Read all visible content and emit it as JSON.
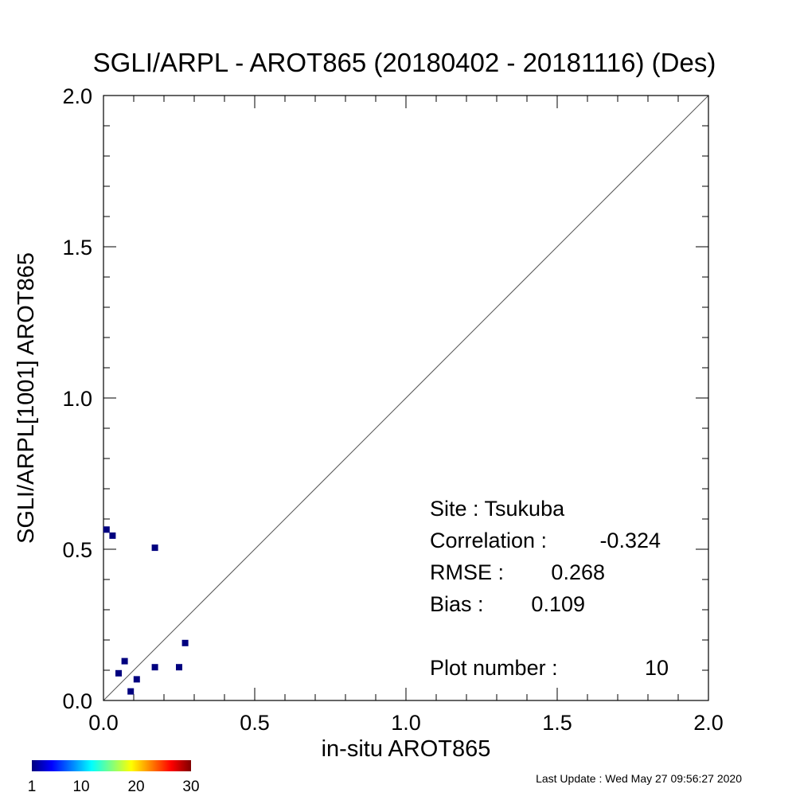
{
  "chart_data": {
    "type": "scatter",
    "title": "SGLI/ARPL - AROT865 (20180402 - 20181116) (Des)",
    "xlabel": "in-situ AROT865",
    "ylabel": "SGLI/ARPL[1001]    AROT865",
    "xlim": [
      0,
      2
    ],
    "ylim": [
      0,
      2
    ],
    "x_ticks": [
      "0.0",
      "0.5",
      "1.0",
      "1.5",
      "2.0"
    ],
    "y_ticks": [
      "0.0",
      "0.5",
      "1.0",
      "1.5",
      "2.0"
    ],
    "reference_line": "1:1",
    "grid": false,
    "points": [
      {
        "x": 0.01,
        "y": 0.565
      },
      {
        "x": 0.03,
        "y": 0.545
      },
      {
        "x": 0.17,
        "y": 0.505
      },
      {
        "x": 0.05,
        "y": 0.09
      },
      {
        "x": 0.07,
        "y": 0.13
      },
      {
        "x": 0.09,
        "y": 0.03
      },
      {
        "x": 0.11,
        "y": 0.07
      },
      {
        "x": 0.17,
        "y": 0.11
      },
      {
        "x": 0.25,
        "y": 0.11
      },
      {
        "x": 0.27,
        "y": 0.19
      }
    ],
    "point_color": "#00007f",
    "stats": [
      {
        "label": "Site : Tsukuba",
        "value": ""
      },
      {
        "label": "Correlation :",
        "value": "-0.324"
      },
      {
        "label": "RMSE :",
        "value": "0.268"
      },
      {
        "label": "Bias :",
        "value": "0.109"
      },
      {
        "label": "Plot number :",
        "value": "10"
      }
    ],
    "colorbar": {
      "ticks": [
        "1",
        "10",
        "20",
        "30"
      ],
      "tick_values": [
        1,
        10,
        20,
        30
      ],
      "range": [
        1,
        30
      ],
      "colormap": "jet"
    }
  },
  "footer": {
    "last_update": "Last Update : Wed May 27 09:56:27 2020"
  }
}
